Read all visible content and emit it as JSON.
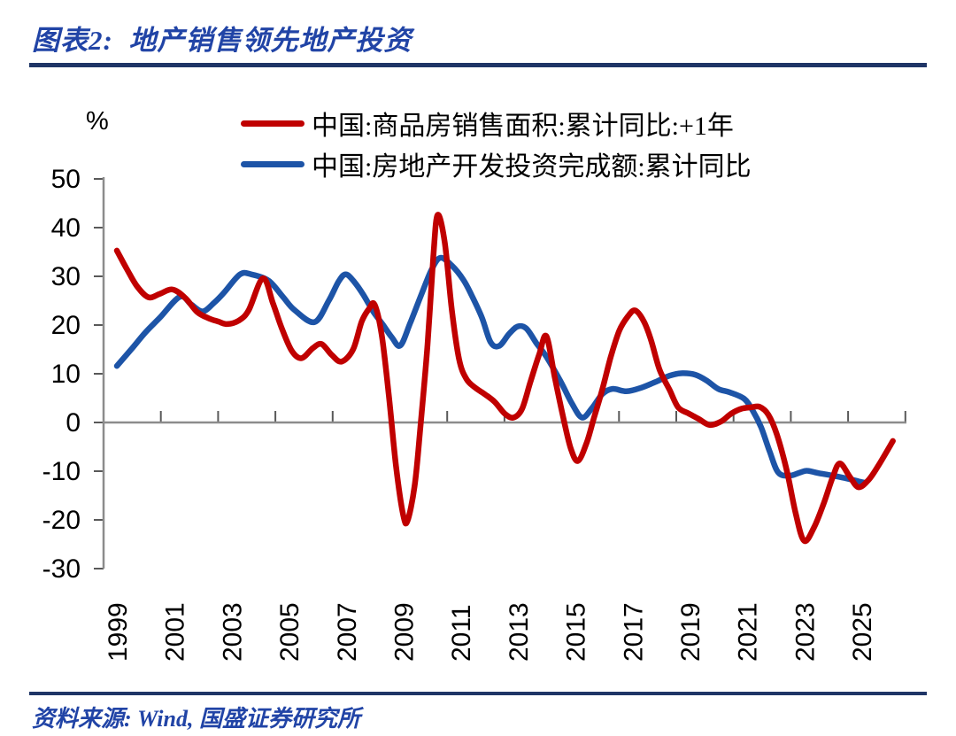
{
  "header": {
    "title": "图表2:  地产销售领先地产投资"
  },
  "footer": {
    "source": "资料来源: Wind, 国盛证券研究所"
  },
  "colors": {
    "title_blue": "#2144A6",
    "rule_navy": "#1F3566",
    "axis_line": "#8C8C8C",
    "tick_mark": "#595959",
    "sales_red": "#C00000",
    "investment_blue": "#1D54A7"
  },
  "chart_data": {
    "type": "line",
    "title": "地产销售领先地产投资",
    "unit_label": "%",
    "legend_position": "top",
    "grid": false,
    "y_axis": {
      "min": -30,
      "max": 50,
      "tick_step": 10,
      "tick_labels": [
        "50",
        "40",
        "30",
        "20",
        "10",
        "0",
        "-10",
        "-20",
        "-30"
      ]
    },
    "x_axis": {
      "label_rotation_deg": 90,
      "range": [
        1999,
        2026.6
      ],
      "tick_labels": [
        "1999",
        "2001",
        "2003",
        "2005",
        "2007",
        "2009",
        "2011",
        "2013",
        "2015",
        "2017",
        "2019",
        "2021",
        "2023",
        "2025"
      ]
    },
    "series": [
      {
        "name": "中国:商品房销售面积:累计同比:+1年",
        "color": "#C00000",
        "points": [
          [
            1999.0,
            35.3
          ],
          [
            1999.35,
            31.5
          ],
          [
            1999.7,
            28.0
          ],
          [
            2000.1,
            25.7
          ],
          [
            2000.5,
            26.4
          ],
          [
            2000.95,
            27.3
          ],
          [
            2001.4,
            25.5
          ],
          [
            2001.8,
            22.7
          ],
          [
            2002.2,
            21.4
          ],
          [
            2002.55,
            20.7
          ],
          [
            2002.85,
            20.2
          ],
          [
            2003.25,
            20.9
          ],
          [
            2003.6,
            23.0
          ],
          [
            2004.1,
            29.6
          ],
          [
            2004.45,
            24.5
          ],
          [
            2004.75,
            19.5
          ],
          [
            2005.1,
            14.8
          ],
          [
            2005.45,
            13.2
          ],
          [
            2005.85,
            15.3
          ],
          [
            2006.15,
            16.1
          ],
          [
            2006.5,
            13.9
          ],
          [
            2006.85,
            12.5
          ],
          [
            2007.25,
            15.0
          ],
          [
            2007.55,
            20.7
          ],
          [
            2007.8,
            23.3
          ],
          [
            2008.0,
            24.2
          ],
          [
            2008.25,
            18.0
          ],
          [
            2008.5,
            5.5
          ],
          [
            2008.75,
            -9.0
          ],
          [
            2009.0,
            -19.0
          ],
          [
            2009.15,
            -20.2
          ],
          [
            2009.4,
            -13.0
          ],
          [
            2009.6,
            -1.0
          ],
          [
            2009.85,
            16.0
          ],
          [
            2010.05,
            34.0
          ],
          [
            2010.2,
            42.6
          ],
          [
            2010.45,
            37.0
          ],
          [
            2010.7,
            23.0
          ],
          [
            2010.95,
            13.0
          ],
          [
            2011.2,
            9.0
          ],
          [
            2011.5,
            7.2
          ],
          [
            2011.85,
            5.8
          ],
          [
            2012.2,
            4.2
          ],
          [
            2012.55,
            1.8
          ],
          [
            2012.85,
            1.0
          ],
          [
            2013.15,
            2.8
          ],
          [
            2013.45,
            8.5
          ],
          [
            2013.75,
            14.0
          ],
          [
            2014.0,
            17.7
          ],
          [
            2014.3,
            9.0
          ],
          [
            2014.6,
            0.7
          ],
          [
            2014.85,
            -5.3
          ],
          [
            2015.1,
            -7.9
          ],
          [
            2015.4,
            -4.3
          ],
          [
            2015.65,
            0.7
          ],
          [
            2015.95,
            6.7
          ],
          [
            2016.25,
            13.5
          ],
          [
            2016.55,
            18.9
          ],
          [
            2016.85,
            21.8
          ],
          [
            2017.1,
            23.0
          ],
          [
            2017.4,
            20.8
          ],
          [
            2017.65,
            17.0
          ],
          [
            2017.95,
            10.9
          ],
          [
            2018.3,
            6.7
          ],
          [
            2018.6,
            3.1
          ],
          [
            2018.95,
            1.9
          ],
          [
            2019.3,
            0.8
          ],
          [
            2019.7,
            -0.5
          ],
          [
            2020.1,
            0.2
          ],
          [
            2020.45,
            1.8
          ],
          [
            2020.8,
            2.8
          ],
          [
            2021.15,
            3.1
          ],
          [
            2021.45,
            3.2
          ],
          [
            2021.75,
            1.6
          ],
          [
            2022.05,
            -2.5
          ],
          [
            2022.4,
            -10.0
          ],
          [
            2022.7,
            -18.5
          ],
          [
            2023.0,
            -24.3
          ],
          [
            2023.35,
            -21.5
          ],
          [
            2023.7,
            -16.4
          ],
          [
            2024.0,
            -11.2
          ],
          [
            2024.25,
            -8.4
          ],
          [
            2024.6,
            -11.2
          ],
          [
            2024.9,
            -13.3
          ],
          [
            2025.25,
            -11.8
          ],
          [
            2025.6,
            -8.8
          ],
          [
            2026.1,
            -3.8
          ]
        ]
      },
      {
        "name": "中国:房地产开发投资完成额:累计同比",
        "color": "#1D54A7",
        "points": [
          [
            1999.0,
            11.6
          ],
          [
            1999.5,
            15.0
          ],
          [
            2000.0,
            18.5
          ],
          [
            2000.5,
            21.5
          ],
          [
            2001.2,
            25.8
          ],
          [
            2001.6,
            24.2
          ],
          [
            2002.0,
            22.8
          ],
          [
            2002.4,
            24.6
          ],
          [
            2002.75,
            26.7
          ],
          [
            2003.3,
            30.4
          ],
          [
            2003.7,
            30.4
          ],
          [
            2004.3,
            29.1
          ],
          [
            2004.8,
            25.8
          ],
          [
            2005.2,
            23.1
          ],
          [
            2005.9,
            20.6
          ],
          [
            2006.4,
            25.0
          ],
          [
            2006.75,
            29.0
          ],
          [
            2007.0,
            30.4
          ],
          [
            2007.3,
            28.8
          ],
          [
            2007.6,
            26.3
          ],
          [
            2007.95,
            22.8
          ],
          [
            2008.3,
            20.0
          ],
          [
            2008.6,
            17.5
          ],
          [
            2008.9,
            15.8
          ],
          [
            2009.25,
            20.5
          ],
          [
            2009.65,
            26.5
          ],
          [
            2010.0,
            31.5
          ],
          [
            2010.3,
            33.8
          ],
          [
            2010.7,
            32.2
          ],
          [
            2011.1,
            29.3
          ],
          [
            2011.4,
            26.0
          ],
          [
            2011.75,
            21.5
          ],
          [
            2012.05,
            16.5
          ],
          [
            2012.35,
            15.7
          ],
          [
            2012.7,
            18.2
          ],
          [
            2013.0,
            19.7
          ],
          [
            2013.3,
            19.3
          ],
          [
            2013.65,
            16.3
          ],
          [
            2014.0,
            13.5
          ],
          [
            2014.5,
            8.4
          ],
          [
            2014.9,
            3.8
          ],
          [
            2015.25,
            1.0
          ],
          [
            2015.6,
            3.0
          ],
          [
            2015.95,
            5.8
          ],
          [
            2016.3,
            6.9
          ],
          [
            2016.8,
            6.4
          ],
          [
            2017.3,
            7.1
          ],
          [
            2017.8,
            8.3
          ],
          [
            2018.3,
            9.6
          ],
          [
            2018.75,
            10.1
          ],
          [
            2019.2,
            9.8
          ],
          [
            2019.6,
            8.6
          ],
          [
            2020.0,
            6.9
          ],
          [
            2020.4,
            6.2
          ],
          [
            2020.9,
            4.9
          ],
          [
            2021.2,
            2.5
          ],
          [
            2021.5,
            -1.0
          ],
          [
            2021.8,
            -6.0
          ],
          [
            2022.1,
            -10.3
          ],
          [
            2022.5,
            -10.9
          ],
          [
            2022.85,
            -10.3
          ],
          [
            2023.1,
            -9.9
          ],
          [
            2023.5,
            -10.4
          ],
          [
            2024.0,
            -10.9
          ],
          [
            2024.5,
            -11.5
          ],
          [
            2024.9,
            -12.1
          ],
          [
            2025.15,
            -12.4
          ]
        ]
      }
    ]
  }
}
